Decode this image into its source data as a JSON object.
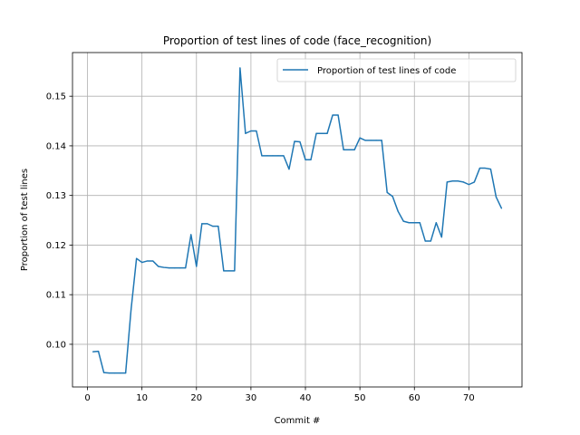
{
  "chart_data": {
    "type": "line",
    "title": "Proportion of test lines of code (face_recognition)",
    "xlabel": "Commit #",
    "ylabel": "Proportion of test lines",
    "xlim": [
      -2.75,
      79.75
    ],
    "ylim": [
      0.0914,
      0.1588
    ],
    "grid": true,
    "legend_position": "upper right",
    "colors": {
      "line": "#1f77b4"
    },
    "x_ticks": [
      0,
      10,
      20,
      30,
      40,
      50,
      60,
      70
    ],
    "x_tick_labels": [
      "0",
      "10",
      "20",
      "30",
      "40",
      "50",
      "60",
      "70"
    ],
    "y_ticks": [
      0.1,
      0.11,
      0.12,
      0.13,
      0.14,
      0.15
    ],
    "y_tick_labels": [
      "0.10",
      "0.11",
      "0.12",
      "0.13",
      "0.14",
      "0.15"
    ],
    "series": [
      {
        "name": "Proportion of test lines of code",
        "x": [
          1,
          2,
          3,
          4,
          5,
          6,
          7,
          8,
          9,
          10,
          11,
          12,
          13,
          14,
          15,
          16,
          17,
          18,
          19,
          20,
          21,
          22,
          23,
          24,
          25,
          26,
          27,
          28,
          29,
          30,
          31,
          32,
          33,
          34,
          35,
          36,
          37,
          38,
          39,
          40,
          41,
          42,
          43,
          44,
          45,
          46,
          47,
          48,
          49,
          50,
          51,
          52,
          53,
          54,
          55,
          56,
          57,
          58,
          59,
          60,
          61,
          62,
          63,
          64,
          65,
          66,
          67,
          68,
          69,
          70,
          71,
          72,
          73,
          74,
          75,
          76
        ],
        "values": [
          0.0985,
          0.0986,
          0.0943,
          0.0942,
          0.0942,
          0.0942,
          0.0942,
          0.107,
          0.1173,
          0.1165,
          0.1168,
          0.1168,
          0.1157,
          0.1155,
          0.1154,
          0.1154,
          0.1154,
          0.1154,
          0.1221,
          0.1157,
          0.1243,
          0.1243,
          0.1238,
          0.1238,
          0.1148,
          0.1148,
          0.1148,
          0.1557,
          0.1425,
          0.143,
          0.143,
          0.138,
          0.138,
          0.138,
          0.138,
          0.138,
          0.1353,
          0.1409,
          0.1408,
          0.1372,
          0.1372,
          0.1425,
          0.1425,
          0.1425,
          0.1462,
          0.1462,
          0.1392,
          0.1392,
          0.1392,
          0.1416,
          0.1411,
          0.1411,
          0.1411,
          0.1411,
          0.1306,
          0.1298,
          0.1268,
          0.1248,
          0.1245,
          0.1245,
          0.1245,
          0.1208,
          0.1208,
          0.1245,
          0.1216,
          0.1327,
          0.1329,
          0.1329,
          0.1327,
          0.1322,
          0.1327,
          0.1355,
          0.1355,
          0.1353,
          0.1297,
          0.1274
        ]
      }
    ]
  }
}
